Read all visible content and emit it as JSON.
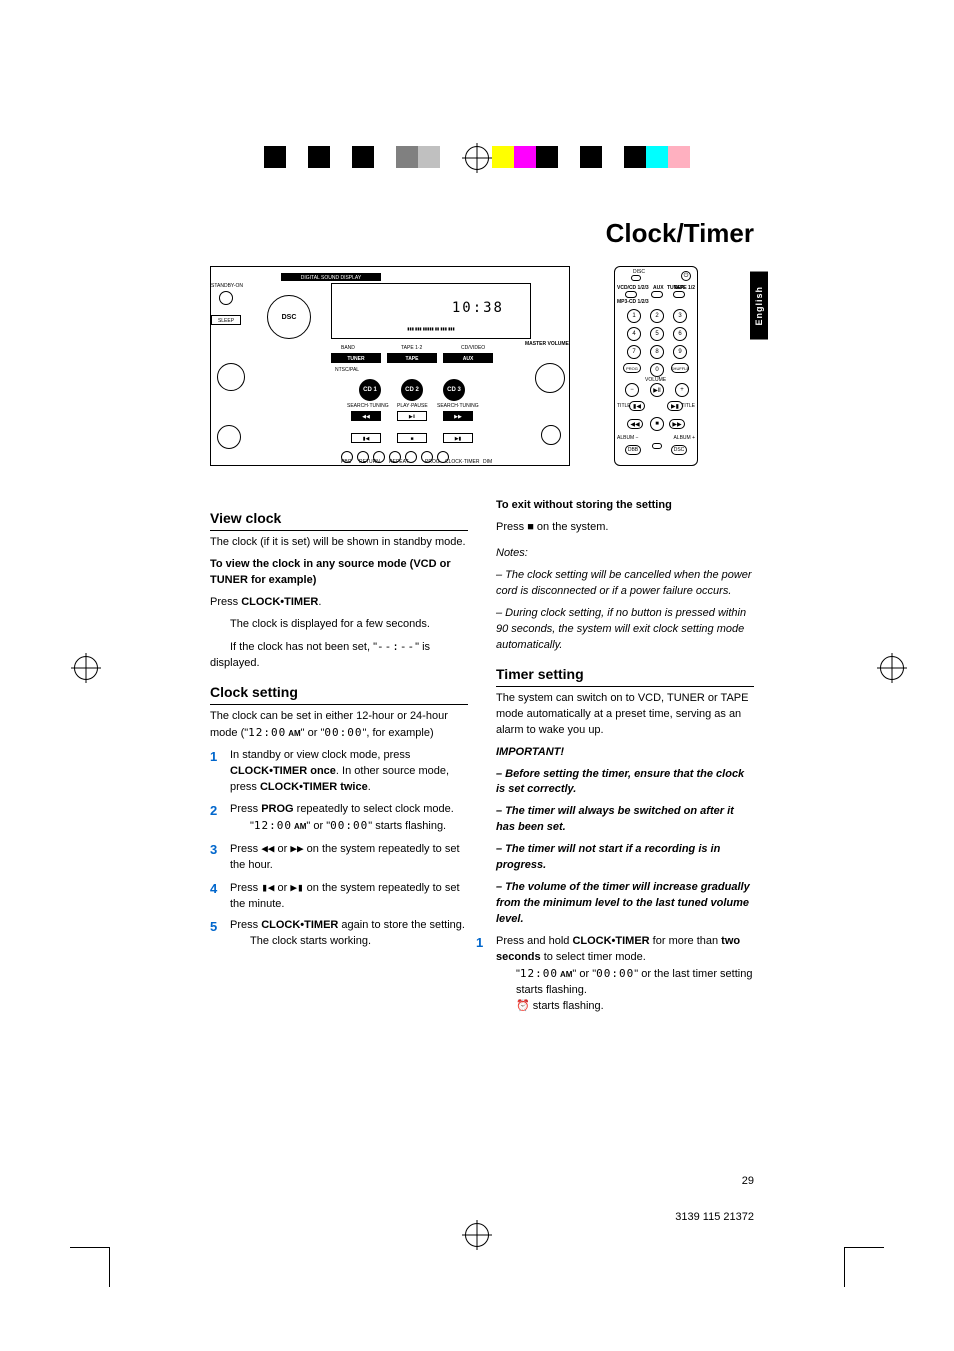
{
  "page": {
    "title": "Clock/Timer",
    "lang_tab": "English",
    "number": "29",
    "footer_code": "3139 115 21372"
  },
  "reg_colors_left": [
    "#000000",
    "#ffffff",
    "#000000",
    "#ffffff",
    "#000000",
    "#ffffff",
    "#808080",
    "#c0c0c0",
    "#ffffff"
  ],
  "reg_colors_right": [
    "#ffff00",
    "#ff00ff",
    "#000000",
    "#ffffff",
    "#000000",
    "#ffffff",
    "#000000",
    "#00ffff",
    "#ffb0c0"
  ],
  "diagram": {
    "display_label": "DIGITAL SOUND DISPLAY",
    "standby": "STANDBY-ON",
    "dsc": "DSC",
    "sleep": "SLEEP",
    "time": "10:38",
    "band": "BAND",
    "tape12": "TAPE 1·2",
    "cdvideo": "CD/VIDEO",
    "master_vol": "MASTER VOLUME",
    "tuner": "TUNER",
    "tape": "TAPE",
    "aux": "AUX",
    "ntsc": "NTSC/PAL",
    "cd1": "CD 1",
    "cd2": "CD 2",
    "cd3": "CD 3",
    "search_tuning": "SEARCH·TUNING",
    "play_pause": "PLAY·PAUSE",
    "pbc": "PBC",
    "return": "RETURN",
    "prog": "PROG",
    "clock_timer": "CLOCK·TIMER",
    "dim": "DIM",
    "repeat": "REPEAT"
  },
  "remote": {
    "disc": "DISC",
    "vcd": "VCD/CD 1/2/3",
    "aux": "AUX",
    "tuner": "TUNER",
    "tape": "TAPE 1/2",
    "mp3": "MP3-CD 1/2/3",
    "prog": "PROG",
    "shuffle": "SHUFFLE",
    "volume": "VOLUME",
    "title": "TITLE",
    "album_minus": "ALBUM −",
    "album_plus": "ALBUM +",
    "dbb": "DBB",
    "dsc": "DSC"
  },
  "left_col": {
    "view_clock_h": "View clock",
    "view_clock_p1": "The clock (if it is set) will be shown in standby mode.",
    "view_clock_b1": "To view the clock in any source mode (VCD or TUNER for example)",
    "view_clock_p2a": "Press ",
    "view_clock_p2b": "CLOCK•TIMER",
    "view_clock_p2c": ".",
    "view_clock_p3": "The clock is displayed for a few seconds.",
    "view_clock_p4a": "If the clock has not been set, \"",
    "view_clock_p4b": "--:--",
    "view_clock_p4c": "\" is displayed.",
    "clock_setting_h": "Clock setting",
    "clock_setting_p1a": "The clock can be set in either 12-hour or 24-hour mode (\"",
    "clock_setting_p1b": "12:00",
    "clock_setting_p1c": " AM",
    "clock_setting_p1d": "\" or \"",
    "clock_setting_p1e": "00:00",
    "clock_setting_p1f": "\", for example)",
    "step1a": "In standby or view clock mode, press ",
    "step1b": "CLOCK•TIMER once",
    "step1c": ". In other source mode, press ",
    "step1d": "CLOCK•TIMER twice",
    "step1e": ".",
    "step2a": "Press ",
    "step2b": "PROG",
    "step2c": " repeatedly to select clock mode.",
    "step2_sub_a": "\"",
    "step2_sub_b": "12:00",
    "step2_sub_c": " AM",
    "step2_sub_d": "\" or \"",
    "step2_sub_e": "00:00",
    "step2_sub_f": "\" starts flashing.",
    "step3a": "Press ",
    "step3b": "◀◀",
    "step3c": " or ",
    "step3d": "▶▶",
    "step3e": " on the system repeatedly to set the hour.",
    "step4a": "Press ",
    "step4b": "▮◀",
    "step4c": " or ",
    "step4d": "▶▮",
    "step4e": " on the system repeatedly to set the minute.",
    "step5a": "Press ",
    "step5b": "CLOCK•TIMER",
    "step5c": " again to store the setting.",
    "step5_sub": "The clock starts working."
  },
  "right_col": {
    "exit_h": "To exit without storing the setting",
    "exit_p_a": "Press ",
    "exit_p_b": "■",
    "exit_p_c": " on the system.",
    "notes_h": "Notes:",
    "note1": "– The clock setting will be cancelled when the power cord is disconnected or if a power failure occurs.",
    "note2": "– During clock setting, if no button is pressed within 90 seconds, the system will exit clock setting mode automatically.",
    "timer_h": "Timer setting",
    "timer_p1": "The system can switch on to VCD, TUNER or TAPE mode automatically at a preset time, serving as an alarm to wake you up.",
    "important": "IMPORTANT!",
    "imp1": "– Before setting the timer, ensure that the clock is set correctly.",
    "imp2": "– The timer will always be switched on after it has been set.",
    "imp3": "– The timer will not start if a recording is in progress.",
    "imp4": "– The volume of the timer will increase gradually from the minimum level to the last tuned volume level.",
    "tstep1a": "Press and hold ",
    "tstep1b": "CLOCK•TIMER",
    "tstep1c": " for more than ",
    "tstep1d": "two seconds",
    "tstep1e": " to select timer mode.",
    "tstep1_sub_a": "\"",
    "tstep1_sub_b": "12:00",
    "tstep1_sub_c": " AM",
    "tstep1_sub_d": "\" or \"",
    "tstep1_sub_e": "00:00",
    "tstep1_sub_f": "\" or the last timer setting starts flashing.",
    "tstep1_sub2_a": "⏰",
    "tstep1_sub2_b": " starts flashing."
  }
}
